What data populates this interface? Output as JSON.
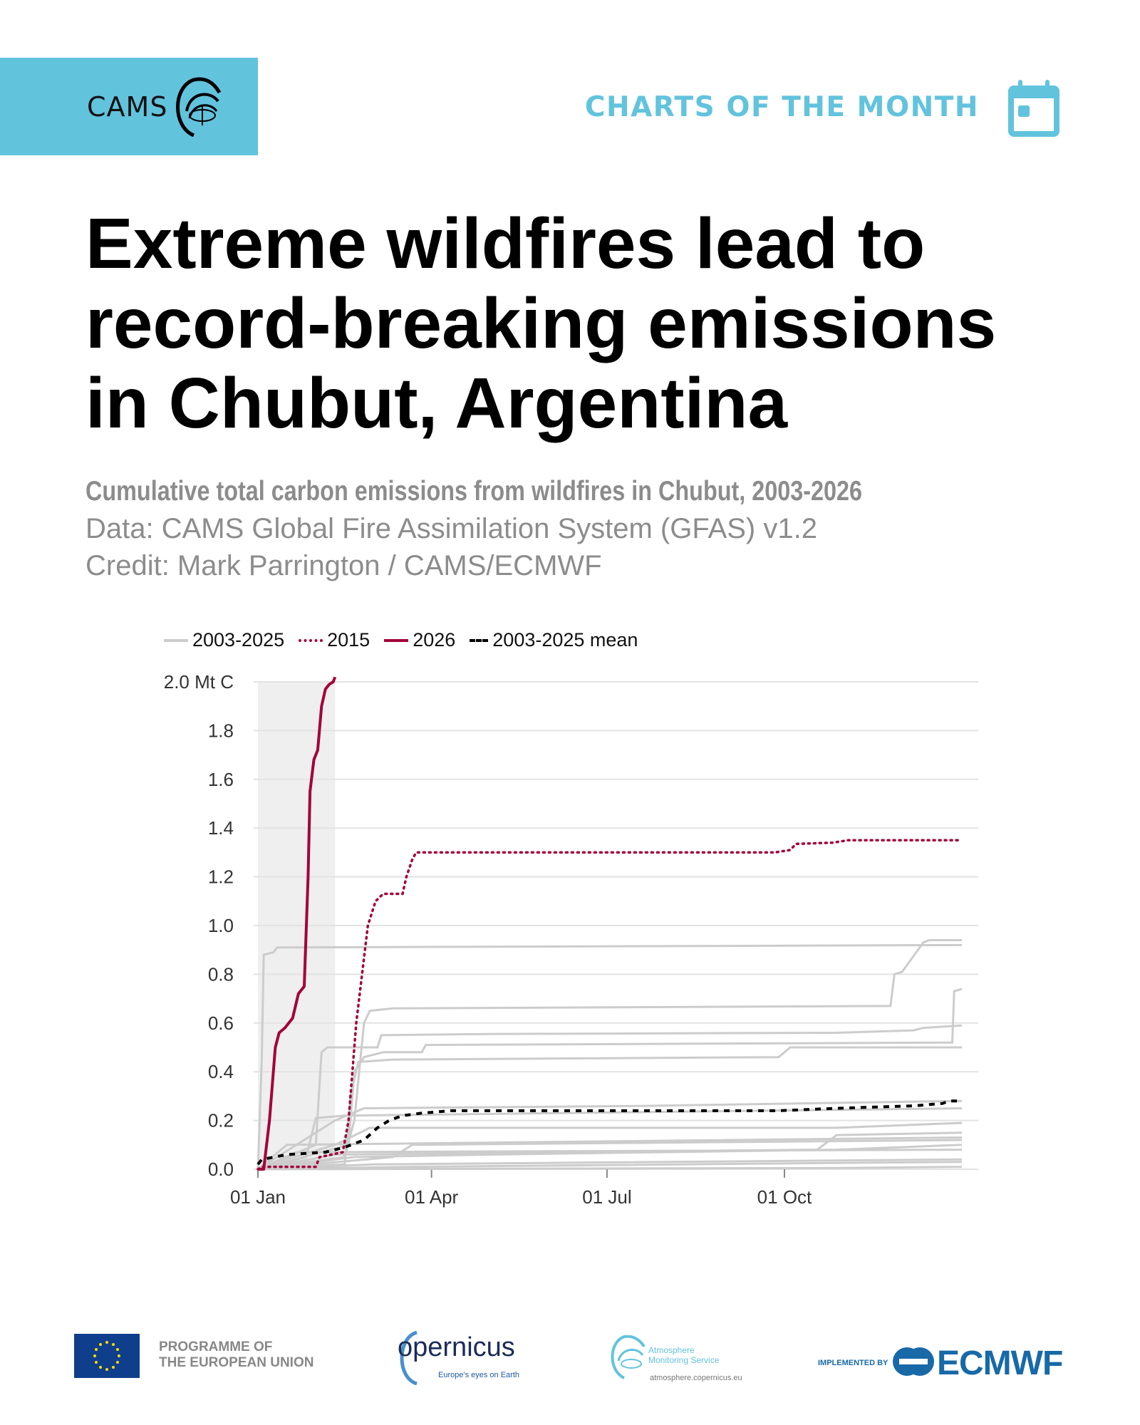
{
  "header": {
    "logo_text": "CAMS",
    "series_title": "CHARTS OF THE MONTH",
    "calendar_icon": "calendar-icon"
  },
  "headline": "Extreme wildfires lead to record-breaking emissions in Chubut, Argentina",
  "subtitle": "Cumulative total carbon emissions from wildfires in Chubut, 2003-2026",
  "data_source": "Data: CAMS Global Fire Assimilation System (GFAS) v1.2",
  "credit": "Credit: Mark Parrington / CAMS/ECMWF",
  "colors": {
    "accent": "#62c3dd",
    "highlight": "#a3003b",
    "gray": "#cccccc",
    "mean": "#000000"
  },
  "chart_data": {
    "type": "line",
    "title": "Cumulative total carbon emissions from wildfires in Chubut, 2003-2026",
    "xlabel": "",
    "ylabel": "Mt C",
    "x_unit": "day of year",
    "xlim": [
      0,
      365
    ],
    "ylim": [
      0,
      2.0
    ],
    "x_ticks": [
      {
        "day": 0,
        "label": "01 Jan"
      },
      {
        "day": 90,
        "label": "01 Apr"
      },
      {
        "day": 181,
        "label": "01 Jul"
      },
      {
        "day": 273,
        "label": "01 Oct"
      }
    ],
    "y_ticks": [
      {
        "v": 0,
        "label": "0.0"
      },
      {
        "v": 0.2,
        "label": "0.2"
      },
      {
        "v": 0.4,
        "label": "0.4"
      },
      {
        "v": 0.6,
        "label": "0.6"
      },
      {
        "v": 0.8,
        "label": "0.8"
      },
      {
        "v": 1.0,
        "label": "1.0"
      },
      {
        "v": 1.2,
        "label": "1.2"
      },
      {
        "v": 1.4,
        "label": "1.4"
      },
      {
        "v": 1.6,
        "label": "1.6"
      },
      {
        "v": 1.8,
        "label": "1.8"
      },
      {
        "v": 2.0,
        "label": "2.0 Mt C"
      }
    ],
    "grid": true,
    "legend_position": "top-left",
    "legend": [
      "2003-2025",
      "2015",
      "2026",
      "2003-2025 mean"
    ],
    "shaded_period_days": [
      0,
      40
    ],
    "series": [
      {
        "name": "2003-2025",
        "style": "gray",
        "points": [
          [
            0,
            0
          ],
          [
            2,
            0.45
          ],
          [
            3,
            0.88
          ],
          [
            8,
            0.89
          ],
          [
            10,
            0.91
          ],
          [
            365,
            0.92
          ]
        ]
      },
      {
        "name": "2003-2025",
        "style": "gray",
        "points": [
          [
            0,
            0
          ],
          [
            45,
            0.05
          ],
          [
            50,
            0.2
          ],
          [
            55,
            0.6
          ],
          [
            58,
            0.65
          ],
          [
            70,
            0.66
          ],
          [
            328,
            0.67
          ],
          [
            330,
            0.8
          ],
          [
            334,
            0.81
          ],
          [
            345,
            0.93
          ],
          [
            348,
            0.94
          ],
          [
            365,
            0.94
          ]
        ]
      },
      {
        "name": "2003-2025",
        "style": "gray",
        "points": [
          [
            0,
            0
          ],
          [
            30,
            0.1
          ],
          [
            33,
            0.48
          ],
          [
            36,
            0.5
          ],
          [
            62,
            0.5
          ],
          [
            64,
            0.55
          ],
          [
            120,
            0.555
          ],
          [
            300,
            0.56
          ],
          [
            340,
            0.57
          ],
          [
            345,
            0.58
          ],
          [
            365,
            0.59
          ]
        ]
      },
      {
        "name": "2003-2025",
        "style": "gray",
        "points": [
          [
            0,
            0
          ],
          [
            47,
            0.1
          ],
          [
            50,
            0.4
          ],
          [
            55,
            0.46
          ],
          [
            65,
            0.48
          ],
          [
            85,
            0.48
          ],
          [
            87,
            0.51
          ],
          [
            360,
            0.52
          ],
          [
            361,
            0.73
          ],
          [
            365,
            0.74
          ]
        ]
      },
      {
        "name": "2003-2025",
        "style": "gray",
        "points": [
          [
            0,
            0
          ],
          [
            45,
            0.02
          ],
          [
            48,
            0.3
          ],
          [
            52,
            0.44
          ],
          [
            70,
            0.45
          ],
          [
            270,
            0.46
          ],
          [
            276,
            0.5
          ],
          [
            365,
            0.5
          ]
        ]
      },
      {
        "name": "2003-2025",
        "style": "gray",
        "points": [
          [
            0,
            0
          ],
          [
            20,
            0.1
          ],
          [
            40,
            0.2
          ],
          [
            55,
            0.25
          ],
          [
            200,
            0.26
          ],
          [
            365,
            0.28
          ]
        ]
      },
      {
        "name": "2003-2025",
        "style": "gray",
        "points": [
          [
            0,
            0
          ],
          [
            25,
            0.05
          ],
          [
            30,
            0.21
          ],
          [
            45,
            0.22
          ],
          [
            365,
            0.25
          ]
        ]
      },
      {
        "name": "2003-2025",
        "style": "gray",
        "points": [
          [
            0,
            0
          ],
          [
            10,
            0.03
          ],
          [
            40,
            0.1
          ],
          [
            58,
            0.17
          ],
          [
            300,
            0.17
          ],
          [
            365,
            0.19
          ]
        ]
      },
      {
        "name": "2003-2025",
        "style": "gray",
        "points": [
          [
            0,
            0
          ],
          [
            70,
            0.05
          ],
          [
            80,
            0.1
          ],
          [
            365,
            0.12
          ]
        ]
      },
      {
        "name": "2003-2025",
        "style": "gray",
        "points": [
          [
            0,
            0
          ],
          [
            50,
            0.05
          ],
          [
            120,
            0.06
          ],
          [
            300,
            0.08
          ],
          [
            365,
            0.1
          ]
        ]
      },
      {
        "name": "2003-2025",
        "style": "gray",
        "points": [
          [
            0,
            0
          ],
          [
            60,
            0.02
          ],
          [
            365,
            0.04
          ]
        ]
      },
      {
        "name": "2003-2025",
        "style": "gray",
        "points": [
          [
            0,
            0
          ],
          [
            20,
            0.07
          ],
          [
            365,
            0.08
          ]
        ]
      },
      {
        "name": "2003-2025",
        "style": "gray",
        "points": [
          [
            0,
            0
          ],
          [
            80,
            0.01
          ],
          [
            365,
            0.03
          ]
        ]
      },
      {
        "name": "2003-2025",
        "style": "gray",
        "points": [
          [
            0,
            0
          ],
          [
            40,
            0.06
          ],
          [
            290,
            0.08
          ],
          [
            300,
            0.14
          ],
          [
            365,
            0.15
          ]
        ]
      },
      {
        "name": "2003-2025",
        "style": "gray",
        "points": [
          [
            0,
            0
          ],
          [
            300,
            0.005
          ],
          [
            365,
            0.01
          ]
        ]
      },
      {
        "name": "2003-2025",
        "style": "gray",
        "points": [
          [
            0,
            0
          ],
          [
            15,
            0.1
          ],
          [
            365,
            0.13
          ]
        ]
      },
      {
        "name": "2003-2025 mean",
        "style": "mean",
        "points": [
          [
            0,
            0.02
          ],
          [
            2,
            0.04
          ],
          [
            15,
            0.06
          ],
          [
            35,
            0.07
          ],
          [
            45,
            0.09
          ],
          [
            55,
            0.12
          ],
          [
            62,
            0.17
          ],
          [
            68,
            0.2
          ],
          [
            75,
            0.22
          ],
          [
            85,
            0.23
          ],
          [
            100,
            0.24
          ],
          [
            270,
            0.24
          ],
          [
            300,
            0.25
          ],
          [
            340,
            0.26
          ],
          [
            355,
            0.27
          ],
          [
            358,
            0.28
          ],
          [
            365,
            0.28
          ]
        ]
      },
      {
        "name": "2015",
        "style": "dotted",
        "points": [
          [
            0,
            0
          ],
          [
            2,
            0.01
          ],
          [
            30,
            0.01
          ],
          [
            32,
            0.05
          ],
          [
            44,
            0.07
          ],
          [
            47,
            0.2
          ],
          [
            51,
            0.6
          ],
          [
            57,
            1.0
          ],
          [
            61,
            1.1
          ],
          [
            65,
            1.13
          ],
          [
            75,
            1.13
          ],
          [
            77,
            1.2
          ],
          [
            80,
            1.27
          ],
          [
            82,
            1.3
          ],
          [
            268,
            1.3
          ],
          [
            276,
            1.31
          ],
          [
            279,
            1.335
          ],
          [
            298,
            1.34
          ],
          [
            306,
            1.35
          ],
          [
            365,
            1.35
          ]
        ]
      },
      {
        "name": "2026",
        "style": "solid",
        "points": [
          [
            0,
            0
          ],
          [
            3,
            0
          ],
          [
            6,
            0.2
          ],
          [
            9,
            0.5
          ],
          [
            11,
            0.56
          ],
          [
            14,
            0.58
          ],
          [
            18,
            0.62
          ],
          [
            21,
            0.72
          ],
          [
            24,
            0.75
          ],
          [
            26,
            1.2
          ],
          [
            27,
            1.55
          ],
          [
            29,
            1.68
          ],
          [
            31,
            1.72
          ],
          [
            33,
            1.9
          ],
          [
            35,
            1.97
          ],
          [
            37,
            1.99
          ],
          [
            39,
            2.0
          ],
          [
            40,
            2.02
          ]
        ]
      }
    ]
  },
  "footer": {
    "eu_text_1": "PROGRAMME OF",
    "eu_text_2": "THE EUROPEAN UNION",
    "copernicus": "opernicus",
    "copernicus_sub": "Europe's eyes on Earth",
    "atmosphere_1": "Atmosphere",
    "atmosphere_2": "Monitoring Service",
    "atmosphere_url": "atmosphere.copernicus.eu",
    "implemented_by": "IMPLEMENTED BY",
    "ecmwf": "ECMWF"
  }
}
